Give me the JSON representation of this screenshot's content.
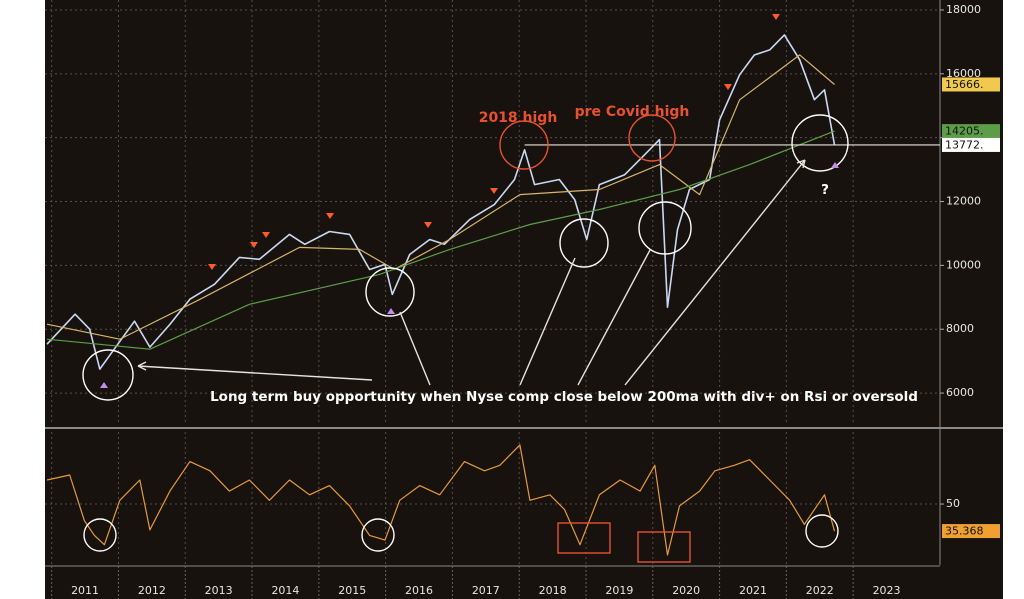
{
  "chart_data": [
    {
      "type": "line",
      "xlim": [
        2010.9,
        2024.3
      ],
      "ylim": [
        5000,
        18312
      ],
      "yticks": [
        6000,
        8000,
        10000,
        12000,
        14000,
        16000,
        18000
      ],
      "grid": true,
      "series": [
        {
          "color": "#c9d9f2",
          "x": [
            2010.93,
            2011.35,
            2011.57,
            2011.72,
            2011.99,
            2012.24,
            2012.47,
            2012.77,
            2013.07,
            2013.44,
            2013.81,
            2014.11,
            2014.56,
            2014.79,
            2015.16,
            2015.46,
            2015.76,
            2015.99,
            2016.1,
            2016.36,
            2016.66,
            2016.88,
            2017.26,
            2017.63,
            2017.93,
            2018.08,
            2018.23,
            2018.6,
            2018.83,
            2019.01,
            2019.2,
            2019.58,
            2019.88,
            2020.1,
            2020.22,
            2020.37,
            2020.55,
            2020.85,
            2021.0,
            2021.3,
            2021.52,
            2021.75,
            2021.97,
            2022.2,
            2022.42,
            2022.57,
            2022.72
          ],
          "values": [
            7530,
            8470,
            8000,
            6750,
            7530,
            8250,
            7440,
            8150,
            8940,
            9410,
            10250,
            10190,
            10970,
            10660,
            11060,
            10970,
            9870,
            10030,
            9090,
            10340,
            10810,
            10660,
            11440,
            11910,
            12690,
            13620,
            12530,
            12690,
            12060,
            10810,
            12530,
            12840,
            13470,
            13940,
            8690,
            11120,
            12380,
            12690,
            14560,
            15970,
            16590,
            16750,
            17220,
            16440,
            15190,
            15500,
            13772
          ]
        },
        {
          "color": "#d8b46c",
          "x": [
            2010.93,
            2012.02,
            2013.22,
            2014.71,
            2015.61,
            2016.13,
            2016.96,
            2018.01,
            2019.2,
            2020.1,
            2020.7,
            2021.3,
            2022.2,
            2022.72
          ],
          "values": [
            8156,
            7687,
            8937,
            10562,
            10500,
            9875,
            10812,
            12218,
            12375,
            13156,
            12218,
            15187,
            16593,
            15666
          ]
        },
        {
          "color": "#5c9e48",
          "x": [
            2010.93,
            2012.47,
            2013.96,
            2015.91,
            2016.96,
            2018.16,
            2019.2,
            2020.4,
            2021.45,
            2022.72
          ],
          "values": [
            7687,
            7375,
            8781,
            9718,
            10500,
            11281,
            11750,
            12375,
            13156,
            14205
          ]
        }
      ],
      "price_tags": [
        {
          "value": 15666,
          "label": "15666.",
          "color": "#f2c94c"
        },
        {
          "value": 14205,
          "label": "14205.",
          "color": "#5c9e48"
        },
        {
          "value": 13772,
          "label": "13772.",
          "color": "#ffffff"
        }
      ],
      "annotations": [
        "2018 high",
        "pre Covid high",
        "Long term buy opportunity when Nyse comp close below 200ma with div+ on Rsi or oversold",
        "?"
      ]
    },
    {
      "type": "line",
      "xlim": [
        2010.9,
        2024.3
      ],
      "ylim": [
        17,
        89
      ],
      "yticks": [
        50
      ],
      "xticks": [
        2011,
        2012,
        2013,
        2014,
        2015,
        2016,
        2017,
        2018,
        2019,
        2020,
        2021,
        2022,
        2023
      ],
      "grid": true,
      "series": [
        {
          "color": "#e89a3c",
          "x": [
            2010.93,
            2011.27,
            2011.49,
            2011.64,
            2011.79,
            2012.02,
            2012.32,
            2012.47,
            2012.77,
            2013.07,
            2013.37,
            2013.66,
            2013.96,
            2014.26,
            2014.56,
            2014.86,
            2015.16,
            2015.46,
            2015.76,
            2015.99,
            2016.21,
            2016.51,
            2016.81,
            2017.18,
            2017.48,
            2017.71,
            2018.01,
            2018.16,
            2018.46,
            2018.68,
            2018.91,
            2019.2,
            2019.51,
            2019.81,
            2020.03,
            2020.22,
            2020.4,
            2020.7,
            2020.93,
            2021.22,
            2021.45,
            2021.75,
            2022.05,
            2022.27,
            2022.42,
            2022.57,
            2022.72
          ],
          "values": [
            63,
            65.7,
            41,
            33,
            28,
            52,
            63,
            36,
            57,
            73,
            68,
            57,
            63,
            52,
            63,
            55,
            60,
            49,
            33,
            30.5,
            52,
            60,
            55,
            73,
            68,
            71,
            82,
            52,
            55,
            47,
            28,
            55,
            63,
            57,
            71,
            22.4,
            49,
            57,
            68,
            71,
            74,
            63,
            52,
            39,
            47,
            55,
            35.368
          ]
        }
      ],
      "price_tags": [
        35.368
      ],
      "tag_color": "#f0a030"
    }
  ]
}
